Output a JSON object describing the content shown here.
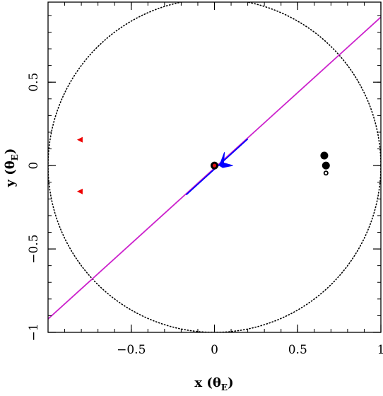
{
  "chart_data": {
    "type": "scatter",
    "title": "",
    "xlabel": "x (θ",
    "xlabel_sub": "E",
    "xlabel_close": ")",
    "ylabel": "y (θ",
    "ylabel_sub": "E",
    "ylabel_close": ")",
    "xlim": [
      -1.0,
      1.0
    ],
    "ylim": [
      -1.0,
      0.98
    ],
    "grid": false,
    "x_ticks": [
      {
        "value": -0.5,
        "label": "−0.5"
      },
      {
        "value": 0,
        "label": "0"
      },
      {
        "value": 0.5,
        "label": "0.5"
      },
      {
        "value": 1,
        "label": "1"
      }
    ],
    "y_ticks": [
      {
        "value": -1,
        "label": "−1"
      },
      {
        "value": -0.5,
        "label": "−0.5"
      },
      {
        "value": 0,
        "label": "0"
      },
      {
        "value": 0.5,
        "label": "0.5"
      }
    ],
    "einstein_ring": {
      "center": [
        0,
        0
      ],
      "radius": 1.0,
      "style": "dotted",
      "color": "#000000"
    },
    "source_trajectory": {
      "color": "#cc22cc",
      "points": [
        [
          -1.0,
          -0.92
        ],
        [
          1.0,
          0.89
        ]
      ]
    },
    "caustic_segment": {
      "color": "#0000ff",
      "points": [
        [
          -0.17,
          -0.175
        ],
        [
          0.2,
          0.16
        ]
      ]
    },
    "caustic_arrow": {
      "color": "#0000ff",
      "tip": [
        0.03,
        0.0
      ],
      "spread": [
        0.05,
        0.08
      ]
    },
    "lens_points": [
      {
        "x": 0.0,
        "y": 0.0,
        "size": "large",
        "color": "#000000"
      },
      {
        "x": 0.66,
        "y": 0.06,
        "size": "large",
        "color": "#000000"
      },
      {
        "x": 0.67,
        "y": 0.0,
        "size": "large",
        "color": "#000000"
      },
      {
        "x": 0.67,
        "y": -0.045,
        "size": "small_open",
        "color": "#000000"
      }
    ],
    "source_points": [
      {
        "x": 0.0,
        "y": 0.0,
        "color": "#dd1111"
      }
    ],
    "image_markers": [
      {
        "x": -0.805,
        "y": 0.155,
        "color": "#ee0000"
      },
      {
        "x": -0.805,
        "y": -0.155,
        "color": "#ee0000"
      }
    ]
  }
}
